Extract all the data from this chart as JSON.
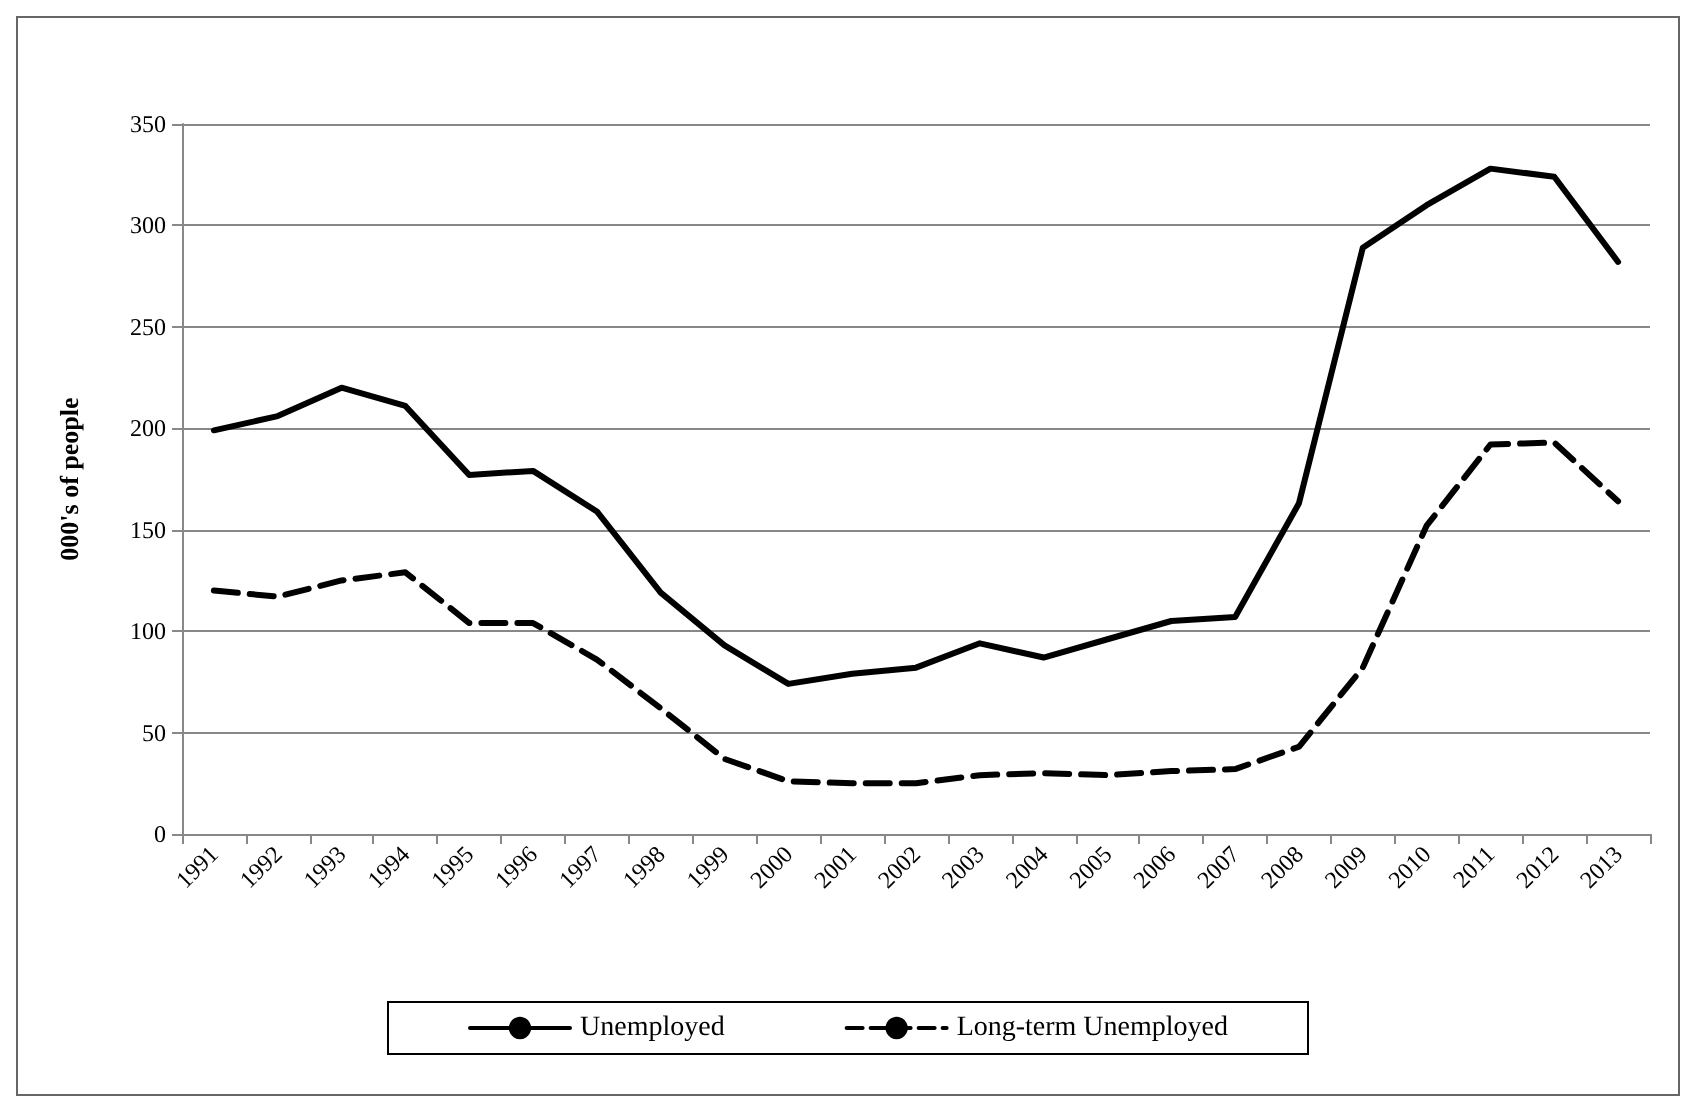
{
  "chart_data": {
    "type": "line",
    "ylabel": "000's of people",
    "categories": [
      "1991",
      "1992",
      "1993",
      "1994",
      "1995",
      "1996",
      "1997",
      "1998",
      "1999",
      "2000",
      "2001",
      "2002",
      "2003",
      "2004",
      "2005",
      "2006",
      "2007",
      "2008",
      "2009",
      "2010",
      "2011",
      "2012",
      "2013"
    ],
    "series": [
      {
        "name": "Unemployed",
        "color": "#000000",
        "line_style": "solid",
        "values": [
          199,
          206,
          220,
          211,
          177,
          179,
          159,
          119,
          93,
          74,
          79,
          82,
          94,
          87,
          96,
          105,
          107,
          163,
          289,
          310,
          328,
          324,
          282
        ]
      },
      {
        "name": "Long-term Unemployed",
        "color": "#000000",
        "line_style": "dashed",
        "values": [
          120,
          117,
          125,
          129,
          104,
          104,
          86,
          62,
          37,
          26,
          25,
          25,
          29,
          30,
          29,
          31,
          32,
          43,
          82,
          152,
          192,
          193,
          164
        ]
      }
    ],
    "ylim": [
      0,
      350
    ],
    "yticks": [
      0,
      50,
      100,
      150,
      200,
      250,
      300,
      350
    ],
    "grid": "y",
    "legend": "bottom",
    "marker": "none"
  }
}
